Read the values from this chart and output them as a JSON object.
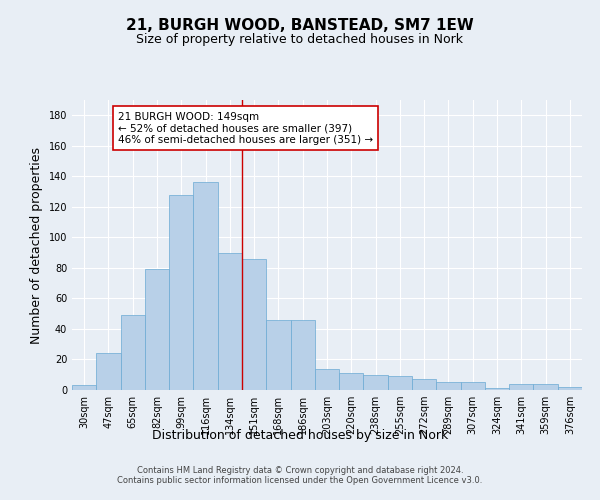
{
  "title": "21, BURGH WOOD, BANSTEAD, SM7 1EW",
  "subtitle": "Size of property relative to detached houses in Nork",
  "xlabel": "Distribution of detached houses by size in Nork",
  "ylabel": "Number of detached properties",
  "categories": [
    "30sqm",
    "47sqm",
    "65sqm",
    "82sqm",
    "99sqm",
    "116sqm",
    "134sqm",
    "151sqm",
    "168sqm",
    "186sqm",
    "203sqm",
    "220sqm",
    "238sqm",
    "255sqm",
    "272sqm",
    "289sqm",
    "307sqm",
    "324sqm",
    "341sqm",
    "359sqm",
    "376sqm"
  ],
  "values": [
    3,
    24,
    49,
    79,
    128,
    136,
    90,
    86,
    46,
    46,
    14,
    11,
    10,
    9,
    7,
    5,
    5,
    1,
    4,
    4,
    2
  ],
  "bar_color": "#b8d0e8",
  "bar_edge_color": "#6aaad4",
  "vline_color": "#cc0000",
  "vline_pos": 6.5,
  "annotation_text": "21 BURGH WOOD: 149sqm\n← 52% of detached houses are smaller (397)\n46% of semi-detached houses are larger (351) →",
  "annotation_box_facecolor": "#ffffff",
  "annotation_box_edgecolor": "#cc0000",
  "ylim": [
    0,
    190
  ],
  "yticks": [
    0,
    20,
    40,
    60,
    80,
    100,
    120,
    140,
    160,
    180
  ],
  "footer": "Contains HM Land Registry data © Crown copyright and database right 2024.\nContains public sector information licensed under the Open Government Licence v3.0.",
  "bg_color": "#e8eef5",
  "grid_color": "#ffffff",
  "title_fontsize": 11,
  "subtitle_fontsize": 9,
  "tick_fontsize": 7,
  "label_fontsize": 9,
  "footer_fontsize": 6,
  "annot_fontsize": 7.5
}
